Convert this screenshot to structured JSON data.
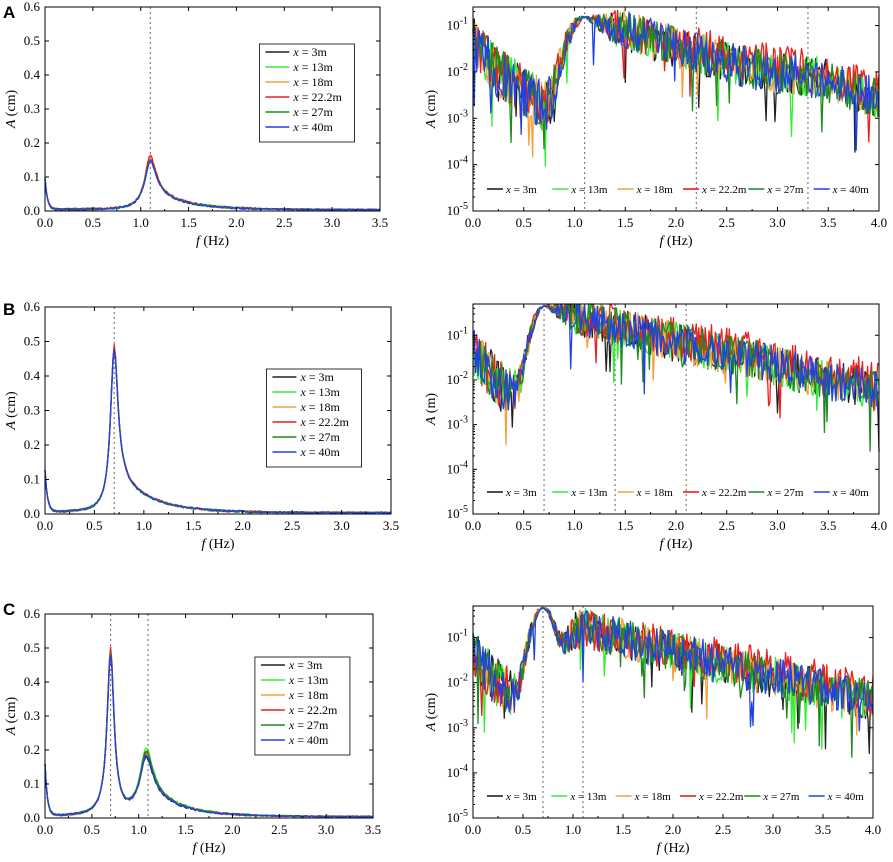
{
  "panel_letters": [
    "A",
    "B",
    "C"
  ],
  "axis_text": {
    "x_var": "f",
    "x_unit": "(Hz)",
    "y_var": "A",
    "legend_var": "x"
  },
  "legend_labels": [
    "= 3m",
    "= 13m",
    "= 18m",
    "= 22.2m",
    "= 27m",
    "= 40m"
  ],
  "colors": {
    "x_3m": "#222222",
    "x_13m": "#33ee33",
    "x_18m": "#f4a040",
    "x_22_2m": "#e8201e",
    "x_27m": "#1f8a1f",
    "x_40m": "#2040e8"
  },
  "chart_data": [
    {
      "panel": "A",
      "side": "left",
      "type": "line",
      "scale": "linear",
      "title": "",
      "ylabel_unit": "(cm)",
      "xlabel": "f (Hz)",
      "xlim": [
        0,
        3.5
      ],
      "ylim": [
        0,
        0.6
      ],
      "x_ticks": [
        "0.0",
        "0.5",
        "1.0",
        "1.5",
        "2.0",
        "2.5",
        "3.0",
        "3.5"
      ],
      "y_ticks": [
        "0.0",
        "0.1",
        "0.2",
        "0.3",
        "0.4",
        "0.5",
        "0.6"
      ],
      "reference_lines_x": [
        1.1
      ],
      "legend": "upper-right box",
      "peaks": [
        {
          "center": 1.1,
          "height": 0.15,
          "width": 0.07,
          "tail": 0.055
        }
      ],
      "low_start": 0.09,
      "series": [
        {
          "name": "x = 3m",
          "color_key": "x_3m",
          "peak_scale": [
            0.98
          ]
        },
        {
          "name": "x = 13m",
          "color_key": "x_13m",
          "peak_scale": [
            1.0
          ]
        },
        {
          "name": "x = 18m",
          "color_key": "x_18m",
          "peak_scale": [
            1.01
          ]
        },
        {
          "name": "x = 22.2m",
          "color_key": "x_22_2m",
          "peak_scale": [
            1.05
          ]
        },
        {
          "name": "x = 27m",
          "color_key": "x_27m",
          "peak_scale": [
            0.97
          ]
        },
        {
          "name": "x = 40m",
          "color_key": "x_40m",
          "peak_scale": [
            0.95
          ]
        }
      ]
    },
    {
      "panel": "A",
      "side": "right",
      "type": "line",
      "scale": "log",
      "title": "",
      "ylabel_unit": "(cm)",
      "xlabel": "f (Hz)",
      "xlim": [
        0,
        4.0
      ],
      "ylim_exponents": [
        -5,
        -0.6
      ],
      "x_ticks": [
        "0.0",
        "0.5",
        "1.0",
        "1.5",
        "2.0",
        "2.5",
        "3.0",
        "3.5",
        "4.0"
      ],
      "y_tick_exponents": [
        "-5",
        "-4",
        "-3",
        "-2",
        "-1"
      ],
      "reference_lines_x": [
        1.1,
        2.2,
        3.3
      ],
      "legend": "bottom horizontal row",
      "peaks": [
        {
          "center": 1.1,
          "height": 0.15,
          "width": 0.1
        }
      ],
      "decay_rate": 1.55,
      "floor": 0.0013,
      "hump": {
        "center": 3.3,
        "height": 0.0028,
        "width": 0.35
      },
      "series": [
        {
          "name": "x = 3m",
          "color_key": "x_3m"
        },
        {
          "name": "x = 13m",
          "color_key": "x_13m"
        },
        {
          "name": "x = 18m",
          "color_key": "x_18m"
        },
        {
          "name": "x = 22.2m",
          "color_key": "x_22_2m"
        },
        {
          "name": "x = 27m",
          "color_key": "x_27m"
        },
        {
          "name": "x = 40m",
          "color_key": "x_40m"
        }
      ]
    },
    {
      "panel": "B",
      "side": "left",
      "type": "line",
      "scale": "linear",
      "title": "",
      "ylabel_unit": "(cm)",
      "xlabel": "f (Hz)",
      "xlim": [
        0,
        3.5
      ],
      "ylim": [
        0,
        0.6
      ],
      "x_ticks": [
        "0.0",
        "0.5",
        "1.0",
        "1.5",
        "2.0",
        "2.5",
        "3.0",
        "3.5"
      ],
      "y_ticks": [
        "0.0",
        "0.1",
        "0.2",
        "0.3",
        "0.4",
        "0.5",
        "0.6"
      ],
      "reference_lines_x": [
        0.7
      ],
      "legend": "upper-right box",
      "peaks": [
        {
          "center": 0.7,
          "height": 0.48,
          "width": 0.045,
          "tail": 0.11
        }
      ],
      "low_start": 0.12,
      "series": [
        {
          "name": "x = 3m",
          "color_key": "x_3m",
          "peak_scale": [
            0.99
          ]
        },
        {
          "name": "x = 13m",
          "color_key": "x_13m",
          "peak_scale": [
            1.0
          ]
        },
        {
          "name": "x = 18m",
          "color_key": "x_18m",
          "peak_scale": [
            1.0
          ]
        },
        {
          "name": "x = 22.2m",
          "color_key": "x_22_2m",
          "peak_scale": [
            1.01
          ]
        },
        {
          "name": "x = 27m",
          "color_key": "x_27m",
          "peak_scale": [
            0.99
          ]
        },
        {
          "name": "x = 40m",
          "color_key": "x_40m",
          "peak_scale": [
            0.98
          ]
        }
      ]
    },
    {
      "panel": "B",
      "side": "right",
      "type": "line",
      "scale": "log",
      "title": "",
      "ylabel_unit": "(m)",
      "xlabel": "f (Hz)",
      "xlim": [
        0,
        4.0
      ],
      "ylim_exponents": [
        -5,
        -0.3
      ],
      "x_ticks": [
        "0.0",
        "0.5",
        "1.0",
        "1.5",
        "2.0",
        "2.5",
        "3.0",
        "3.5",
        "4.0"
      ],
      "y_tick_exponents": [
        "-5",
        "-4",
        "-3",
        "-2",
        "-1"
      ],
      "reference_lines_x": [
        0.7,
        1.4,
        2.1
      ],
      "legend": "bottom horizontal row",
      "peaks": [
        {
          "center": 0.7,
          "height": 0.45,
          "width": 0.07
        }
      ],
      "decay_rate": 1.35,
      "floor": 0.0009,
      "hump": {
        "center": 2.75,
        "height": 0.0035,
        "width": 0.25
      },
      "series": [
        {
          "name": "x = 3m",
          "color_key": "x_3m"
        },
        {
          "name": "x = 13m",
          "color_key": "x_13m"
        },
        {
          "name": "x = 18m",
          "color_key": "x_18m"
        },
        {
          "name": "x = 22.2m",
          "color_key": "x_22_2m"
        },
        {
          "name": "x = 27m",
          "color_key": "x_27m"
        },
        {
          "name": "x = 40m",
          "color_key": "x_40m"
        }
      ]
    },
    {
      "panel": "C",
      "side": "left",
      "type": "line",
      "scale": "linear",
      "title": "",
      "ylabel_unit": "(cm)",
      "xlabel": "f (Hz)",
      "xlim": [
        0,
        3.5
      ],
      "ylim": [
        0,
        0.6
      ],
      "x_ticks": [
        "0.0",
        "0.5",
        "1.0",
        "1.5",
        "2.0",
        "2.5",
        "3.0",
        "3.5"
      ],
      "y_ticks": [
        "0.0",
        "0.1",
        "0.2",
        "0.3",
        "0.4",
        "0.5",
        "0.6"
      ],
      "reference_lines_x": [
        0.7,
        1.1
      ],
      "legend": "upper-right box",
      "peaks": [
        {
          "center": 0.7,
          "height": 0.48,
          "width": 0.045,
          "tail": 0.0
        },
        {
          "center": 1.08,
          "height": 0.17,
          "width": 0.08,
          "tail": 0.07
        }
      ],
      "low_start": 0.15,
      "series": [
        {
          "name": "x = 3m",
          "color_key": "x_3m",
          "peak_scale": [
            0.99,
            1.0
          ]
        },
        {
          "name": "x = 13m",
          "color_key": "x_13m",
          "peak_scale": [
            1.0,
            1.15
          ]
        },
        {
          "name": "x = 18m",
          "color_key": "x_18m",
          "peak_scale": [
            0.99,
            1.05
          ]
        },
        {
          "name": "x = 22.2m",
          "color_key": "x_22_2m",
          "peak_scale": [
            1.02,
            1.08
          ]
        },
        {
          "name": "x = 27m",
          "color_key": "x_27m",
          "peak_scale": [
            0.99,
            1.1
          ]
        },
        {
          "name": "x = 40m",
          "color_key": "x_40m",
          "peak_scale": [
            0.97,
            1.02
          ]
        }
      ]
    },
    {
      "panel": "C",
      "side": "right",
      "type": "line",
      "scale": "log",
      "title": "",
      "ylabel_unit": "(cm)",
      "xlabel": "f (Hz)",
      "xlim": [
        0,
        4.0
      ],
      "ylim_exponents": [
        -5,
        -0.3
      ],
      "x_ticks": [
        "0.0",
        "0.5",
        "1.0",
        "1.5",
        "2.0",
        "2.5",
        "3.0",
        "3.5",
        "4.0"
      ],
      "y_tick_exponents": [
        "-5",
        "-4",
        "-3",
        "-2",
        "-1"
      ],
      "reference_lines_x": [
        0.7,
        1.1
      ],
      "legend": "bottom horizontal row",
      "peaks": [
        {
          "center": 0.7,
          "height": 0.45,
          "width": 0.07
        },
        {
          "center": 1.1,
          "height": 0.18,
          "width": 0.12
        }
      ],
      "decay_rate": 1.35,
      "floor": 0.0008,
      "hump": {
        "center": 3.0,
        "height": 0.0,
        "width": 0.3
      },
      "series": [
        {
          "name": "x = 3m",
          "color_key": "x_3m"
        },
        {
          "name": "x = 13m",
          "color_key": "x_13m"
        },
        {
          "name": "x = 18m",
          "color_key": "x_18m"
        },
        {
          "name": "x = 22.2m",
          "color_key": "x_22_2m"
        },
        {
          "name": "x = 27m",
          "color_key": "x_27m"
        },
        {
          "name": "x = 40m",
          "color_key": "x_40m"
        }
      ]
    }
  ]
}
